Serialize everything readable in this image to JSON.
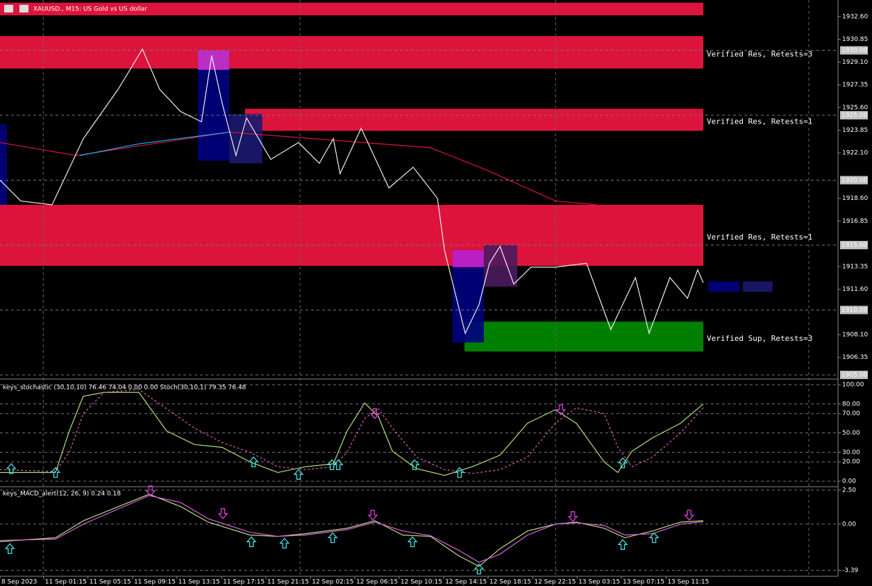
{
  "chart_data": [
    {
      "type": "line",
      "title": "XAUUSD., M15:  US Gold vs US dollar",
      "xlim": [
        0,
        238.3
      ],
      "ylim": [
        1904.73,
        1933.88
      ],
      "yticks": [
        {
          "value": 1932.6,
          "label": "1932.60"
        },
        {
          "value": 1930.85,
          "label": "1930.85"
        },
        {
          "value": 1929.1,
          "label": "1929.10"
        },
        {
          "value": 1927.35,
          "label": "1927.35"
        },
        {
          "value": 1925.6,
          "label": "1925.60"
        },
        {
          "value": 1923.85,
          "label": "1923.85"
        },
        {
          "value": 1922.1,
          "label": "1922.10"
        },
        {
          "value": 1918.6,
          "label": "1918.60"
        },
        {
          "value": 1916.85,
          "label": "1916.85"
        },
        {
          "value": 1913.35,
          "label": "1913.35"
        },
        {
          "value": 1911.6,
          "label": "1911.60"
        },
        {
          "value": 1908.1,
          "label": "1908.10"
        },
        {
          "value": 1906.35,
          "label": "1906.35"
        }
      ],
      "levels": [
        {
          "value": 1930,
          "label": "1930.00"
        },
        {
          "value": 1925,
          "label": "1925.00"
        },
        {
          "value": 1920,
          "label": "1920.00"
        },
        {
          "value": 1915,
          "label": "1915.00"
        },
        {
          "value": 1910,
          "label": "1910.00"
        },
        {
          "value": 1905,
          "label": "1905.00"
        }
      ],
      "xgrid": [
        12.3,
        85.3,
        158,
        230
      ],
      "zones": [
        {
          "low": 1932.7,
          "high": 1933.67,
          "start": 0,
          "end": 200,
          "color": "#dc143c"
        },
        {
          "low": 1928.6,
          "high": 1931.1,
          "start": 0,
          "end": 200,
          "color": "#dc143c",
          "label": "Verified Res, Retests=3"
        },
        {
          "low": 1923.8,
          "high": 1925.5,
          "start": 69.7,
          "end": 200,
          "color": "#dc143c",
          "label": "Verified Res, Retests=1"
        },
        {
          "low": 1913.4,
          "high": 1918.1,
          "start": 0,
          "end": 200,
          "color": "#dc143c",
          "label": "Verified Res, Retests=1"
        },
        {
          "low": 1906.8,
          "high": 1909.1,
          "start": 132.1,
          "end": 200,
          "color": "#008000",
          "label": "Verified Sup, Retests=3"
        }
      ],
      "blocks": [
        {
          "start": 0,
          "end": 2,
          "low": 1918.1,
          "high": 1924.3,
          "color": "#000080"
        },
        {
          "start": 56.3,
          "end": 65.2,
          "low": 1921.5,
          "high": 1930,
          "color": "#000080"
        },
        {
          "start": 56.3,
          "end": 65.2,
          "low": 1928.5,
          "high": 1930,
          "color": "#cc33cc"
        },
        {
          "start": 65.2,
          "end": 74.6,
          "low": 1921.3,
          "high": 1925.1,
          "color": "#191970"
        },
        {
          "start": 128.7,
          "end": 137.6,
          "low": 1907.5,
          "high": 1914.6,
          "color": "#000080"
        },
        {
          "start": 128.7,
          "end": 137.6,
          "low": 1913.3,
          "high": 1914.6,
          "color": "#cc22cc"
        },
        {
          "start": 137.6,
          "end": 147.1,
          "low": 1911.8,
          "high": 1915,
          "color": "#4b1a5e"
        },
        {
          "start": 201.4,
          "end": 210.3,
          "low": 1911.4,
          "high": 1912.2,
          "color": "#000080"
        },
        {
          "start": 211.3,
          "end": 219.7,
          "low": 1911.4,
          "high": 1912.2,
          "color": "#191970"
        }
      ],
      "series": [
        {
          "color": "#dc143c",
          "x": [
            0,
            21.7,
            65.2,
            122.4,
            138.2,
            158,
            169.8
          ],
          "values": [
            1922.9,
            1921.9,
            1923.7,
            1922.5,
            1920.8,
            1918.4,
            1918.1
          ]
        },
        {
          "color": "#1eb4ff",
          "x": [
            22.7,
            39.5,
            65.2
          ],
          "values": [
            1921.9,
            1922.8,
            1923.7
          ]
        },
        {
          "color": "#f0f0f0",
          "x": [
            0,
            5.9,
            14.8,
            23.7,
            33.6,
            40.5,
            45.4,
            51.3,
            57.3,
            60.2,
            63.2,
            67.1,
            70.1,
            77,
            84.9,
            90.8,
            94.8,
            96.7,
            102.7,
            110.6,
            117.5,
            124.4,
            126.4,
            132.3,
            136.2,
            139.2,
            142.2,
            146.1,
            151,
            158,
            166.8,
            173.7,
            180.7,
            184.6,
            190.5,
            195.5,
            198.4,
            200
          ],
          "values": [
            1920.0,
            1918.4,
            1918.1,
            1923.2,
            1927.0,
            1930.1,
            1927.0,
            1925.3,
            1924.5,
            1929.6,
            1925.9,
            1921.9,
            1924.8,
            1921.6,
            1922.9,
            1921.3,
            1923.2,
            1920.5,
            1924.0,
            1919.4,
            1921.0,
            1918.6,
            1914.6,
            1908.2,
            1910.4,
            1913.6,
            1914.9,
            1912.0,
            1913.3,
            1913.3,
            1913.6,
            1908.5,
            1912.5,
            1908.2,
            1912.5,
            1910.9,
            1913.1,
            1912.1
          ]
        }
      ]
    },
    {
      "type": "line",
      "title": "keys_stochastic (30,10,10) 76.46 74.04 0.00 0.00  Stoch(30,10,1) 79.35 76.48",
      "xlim": [
        0,
        238.3
      ],
      "ylim": [
        -5,
        104.3
      ],
      "yticks": [
        {
          "value": 100,
          "label": "100.00"
        },
        {
          "value": 80,
          "label": "80.00"
        },
        {
          "value": 70,
          "label": "70.00"
        },
        {
          "value": 50,
          "label": "50.00"
        },
        {
          "value": 30,
          "label": "30.00"
        },
        {
          "value": 20,
          "label": "20.00"
        },
        {
          "value": 0,
          "label": "0.00"
        }
      ],
      "series": [
        {
          "color": "#b8e07a",
          "x": [
            0,
            15.8,
            19.7,
            23.7,
            29.6,
            39.5,
            47.4,
            55.3,
            63.2,
            71.1,
            79,
            86.9,
            94.8,
            98.7,
            103.7,
            107.6,
            111.6,
            118.5,
            126.4,
            134.3,
            142.2,
            150,
            157.9,
            163.9,
            171.8,
            175.7,
            179.7,
            185.6,
            193.5,
            200
          ],
          "values": [
            9,
            9,
            52,
            88,
            92,
            92,
            52,
            38,
            35,
            20,
            9,
            15,
            18,
            52,
            81,
            67,
            31,
            13,
            6,
            15,
            27,
            60,
            74,
            60,
            20,
            9,
            31,
            45,
            60,
            80
          ]
        },
        {
          "color": "#e060c0",
          "dashed": true,
          "x": [
            0,
            15.8,
            19.7,
            23.7,
            29.6,
            39.5,
            47.4,
            55.3,
            63.2,
            71.1,
            79,
            86.9,
            94.8,
            98.7,
            103.7,
            107.6,
            111.6,
            118.5,
            126.4,
            134.3,
            142.2,
            150,
            157.9,
            163.9,
            171.8,
            175.7,
            179.7,
            185.6,
            193.5,
            200
          ],
          "values": [
            12,
            10,
            30,
            70,
            92,
            95,
            75,
            55,
            40,
            30,
            15,
            12,
            15,
            30,
            65,
            75,
            55,
            25,
            12,
            8,
            12,
            25,
            60,
            76,
            70,
            35,
            15,
            25,
            50,
            76
          ]
        }
      ],
      "signals": [
        {
          "x": 3.2,
          "value": 13,
          "direction": "up"
        },
        {
          "x": 15.8,
          "value": 9,
          "direction": "up"
        },
        {
          "x": 72.1,
          "value": 20,
          "direction": "up"
        },
        {
          "x": 84.9,
          "value": 7,
          "direction": "up"
        },
        {
          "x": 94.4,
          "value": 17,
          "direction": "up"
        },
        {
          "x": 96.2,
          "value": 17,
          "direction": "up"
        },
        {
          "x": 117.9,
          "value": 17,
          "direction": "up"
        },
        {
          "x": 130.7,
          "value": 9,
          "direction": "up"
        },
        {
          "x": 177.1,
          "value": 19,
          "direction": "up"
        },
        {
          "x": 106.6,
          "value": 70,
          "direction": "down"
        },
        {
          "x": 159.5,
          "value": 74,
          "direction": "down"
        }
      ]
    },
    {
      "type": "line",
      "title": "keys_MACD_alert(12, 26, 9) 0.24 0.18",
      "xlim": [
        0,
        238.3
      ],
      "ylim": [
        -3.83,
        2.7
      ],
      "yticks": [
        {
          "value": 2.5,
          "label": "2.50"
        },
        {
          "value": 0,
          "label": "0.00"
        },
        -3.39
      ],
      "series": [
        {
          "color": "#b8e07a",
          "x": [
            0,
            15.8,
            23.7,
            42.4,
            51.3,
            59.2,
            71.1,
            79,
            86.9,
            98.7,
            106.6,
            114.5,
            122.4,
            130.3,
            136.2,
            142.2,
            150,
            157.9,
            163.9,
            171.8,
            177.7,
            185.6,
            193.5,
            200
          ],
          "values": [
            -1.28,
            -1.0,
            0.25,
            2.2,
            1.3,
            0.15,
            -0.8,
            -0.9,
            -0.7,
            -0.3,
            0.25,
            -0.8,
            -0.9,
            -2.3,
            -3.1,
            -1.8,
            -0.5,
            0,
            0.15,
            -0.3,
            -1.0,
            -0.5,
            0.15,
            0.25
          ]
        },
        {
          "color": "#e060e0",
          "x": [
            0,
            15.8,
            23.7,
            42.4,
            51.3,
            59.2,
            71.1,
            79,
            86.9,
            98.7,
            106.6,
            114.5,
            122.4,
            130.3,
            136.2,
            142.2,
            150,
            157.9,
            163.9,
            171.8,
            177.7,
            185.6,
            193.5,
            200
          ],
          "values": [
            -1.2,
            -1.1,
            0,
            2.1,
            1.6,
            0.4,
            -0.6,
            -0.9,
            -0.8,
            -0.4,
            0.15,
            -0.5,
            -0.85,
            -1.9,
            -2.8,
            -2.2,
            -0.8,
            0,
            0.1,
            -0.1,
            -0.8,
            -0.7,
            0,
            0.18
          ]
        }
      ],
      "signals": [
        {
          "x": 2.8,
          "value": -1.8,
          "direction": "up"
        },
        {
          "x": 71.5,
          "value": -1.3,
          "direction": "up"
        },
        {
          "x": 80.9,
          "value": -1.4,
          "direction": "up"
        },
        {
          "x": 94.6,
          "value": -1.0,
          "direction": "up"
        },
        {
          "x": 117.3,
          "value": -1.3,
          "direction": "up"
        },
        {
          "x": 136.2,
          "value": -3.3,
          "direction": "up"
        },
        {
          "x": 177.1,
          "value": -1.5,
          "direction": "up"
        },
        {
          "x": 186,
          "value": -1.0,
          "direction": "up"
        },
        {
          "x": 42.8,
          "value": 2.45,
          "direction": "down"
        },
        {
          "x": 63.4,
          "value": 0.77,
          "direction": "down"
        },
        {
          "x": 106,
          "value": 0.66,
          "direction": "down"
        },
        {
          "x": 162.9,
          "value": 0.56,
          "direction": "down"
        },
        {
          "x": 196,
          "value": 0.66,
          "direction": "down"
        }
      ],
      "xticks": [
        {
          "value": 0,
          "label": "8 Sep 2023"
        },
        {
          "value": 12.4,
          "label": "11 Sep 01:15"
        },
        {
          "value": 25,
          "label": "11 Sep 05:15"
        },
        {
          "value": 37.7,
          "label": "11 Sep 09:15"
        },
        {
          "value": 50.3,
          "label": "11 Sep 13:15"
        },
        {
          "value": 63,
          "label": "11 Sep 17:15"
        },
        {
          "value": 75.6,
          "label": "11 Sep 21:15"
        },
        {
          "value": 88.3,
          "label": "12 Sep 02:15"
        },
        {
          "value": 100.9,
          "label": "12 Sep 06:15"
        },
        {
          "value": 113.5,
          "label": "12 Sep 10:15"
        },
        {
          "value": 126.2,
          "label": "12 Sep 14:15"
        },
        {
          "value": 138.8,
          "label": "12 Sep 18:15"
        },
        {
          "value": 151.5,
          "label": "12 Sep 22:15"
        },
        {
          "value": 164.1,
          "label": "13 Sep 03:15"
        },
        {
          "value": 176.7,
          "label": "13 Sep 07:15"
        },
        {
          "value": 189.4,
          "label": "13 Sep 11:15"
        }
      ]
    }
  ]
}
